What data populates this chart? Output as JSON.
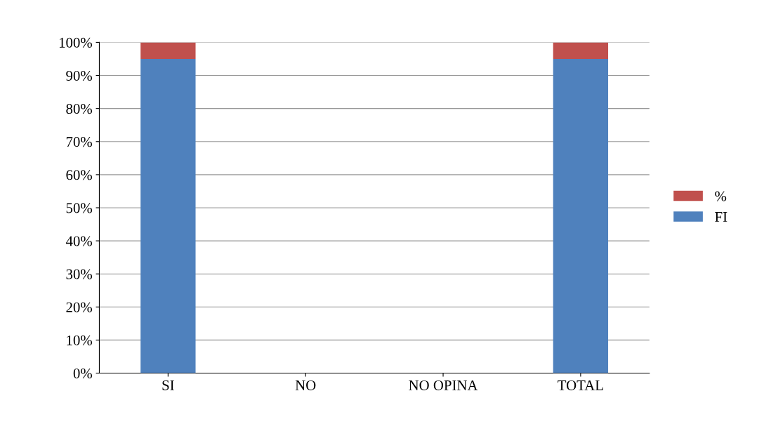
{
  "chart_data": {
    "type": "bar",
    "stacked": true,
    "categories": [
      "SI",
      "NO",
      "NO OPINA",
      "TOTAL"
    ],
    "series": [
      {
        "name": "FI",
        "color": "#4f81bd",
        "values": [
          95,
          0,
          0,
          95
        ]
      },
      {
        "name": "%",
        "color": "#c0504d",
        "values": [
          5,
          0,
          0,
          5
        ]
      }
    ],
    "ylim": [
      0,
      100
    ],
    "yticks": [
      {
        "value": 0,
        "label": "0%"
      },
      {
        "value": 10,
        "label": "10%"
      },
      {
        "value": 20,
        "label": "20%"
      },
      {
        "value": 30,
        "label": "30%"
      },
      {
        "value": 40,
        "label": "40%"
      },
      {
        "value": 50,
        "label": "50%"
      },
      {
        "value": 60,
        "label": "60%"
      },
      {
        "value": 70,
        "label": "70%"
      },
      {
        "value": 80,
        "label": "80%"
      },
      {
        "value": 90,
        "label": "90%"
      },
      {
        "value": 100,
        "label": "100%"
      }
    ],
    "grid": "y",
    "legend": "right"
  }
}
